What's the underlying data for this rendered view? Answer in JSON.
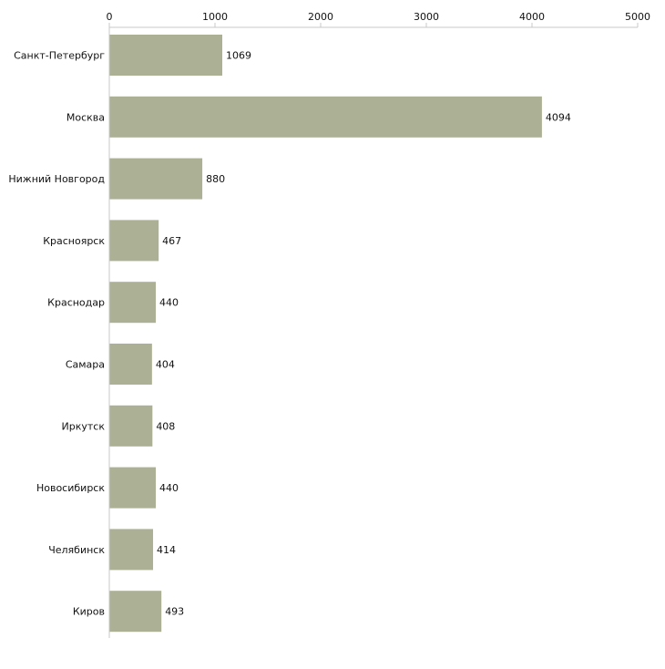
{
  "chart_data": {
    "type": "bar",
    "orientation": "horizontal",
    "title": "",
    "xlabel": "",
    "ylabel": "",
    "xlim": [
      0,
      5000
    ],
    "ticks": [
      "0",
      "1000",
      "2000",
      "3000",
      "4000",
      "5000"
    ],
    "tick_values": [
      0,
      1000,
      2000,
      3000,
      4000,
      5000
    ],
    "categories": [
      "Санкт-Петербург",
      "Москва",
      "Нижний Новгород",
      "Красноярск",
      "Краснодар",
      "Самара",
      "Иркутск",
      "Новосибирск",
      "Челябинск",
      "Киров"
    ],
    "values": [
      1069,
      4094,
      880,
      467,
      440,
      404,
      408,
      440,
      414,
      493
    ],
    "value_labels": [
      "1069",
      "4094",
      "880",
      "467",
      "440",
      "404",
      "408",
      "440",
      "414",
      "493"
    ],
    "grid": false,
    "legend": "none"
  },
  "colors": {
    "bar": "#acb195",
    "axis": "#c8c8c8",
    "text": "#111111"
  }
}
